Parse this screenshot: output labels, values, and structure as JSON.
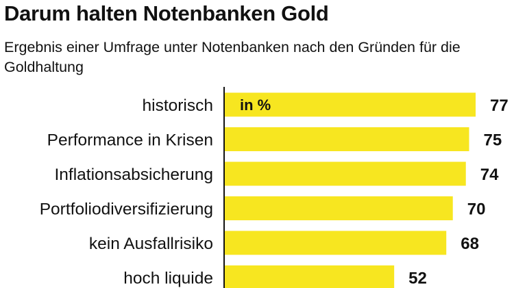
{
  "header": {
    "title": "Darum halten Notenbanken Gold",
    "subtitle": "Ergebnis einer Umfrage unter Notenbanken nach den Gründen für die Goldhaltung"
  },
  "chart_data": {
    "type": "bar",
    "orientation": "horizontal",
    "title": "Darum halten Notenbanken Gold",
    "subtitle": "Ergebnis einer Umfrage unter Notenbanken nach den Gründen für die Goldhaltung",
    "unit_label": "in %",
    "categories": [
      "historisch",
      "Performance in Krisen",
      "Inflationsabsicherung",
      "Portfoliodiversifizierung",
      "kein Ausfallrisiko",
      "hoch liquide"
    ],
    "values": [
      77,
      75,
      74,
      70,
      68,
      52
    ],
    "bar_color": "#f7e620",
    "grid": false,
    "legend": "none"
  }
}
